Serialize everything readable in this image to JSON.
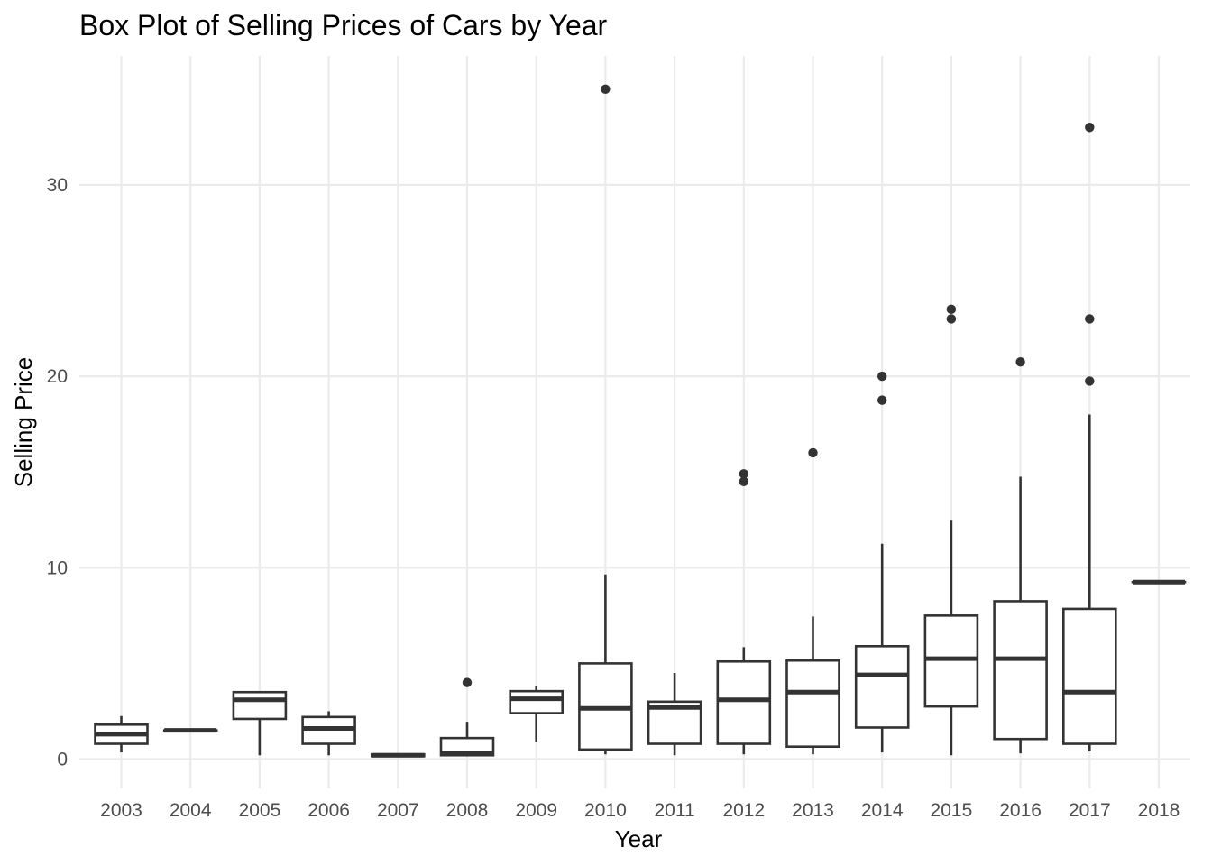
{
  "chart_data": {
    "type": "boxplot",
    "title": "Box Plot of Selling Prices of Cars by Year",
    "xlabel": "Year",
    "ylabel": "Selling Price",
    "ylim": [
      -1.5,
      36.5
    ],
    "y_ticks": [
      0,
      10,
      20,
      30
    ],
    "y_tick_labels": [
      "0",
      "10",
      "20",
      "30"
    ],
    "grid": true,
    "legend": "none",
    "categories": [
      "2003",
      "2004",
      "2005",
      "2006",
      "2007",
      "2008",
      "2009",
      "2010",
      "2011",
      "2012",
      "2013",
      "2014",
      "2015",
      "2016",
      "2017",
      "2018"
    ],
    "boxes": [
      {
        "year": "2003",
        "min": 0.35,
        "q1": 0.8,
        "median": 1.3,
        "q3": 1.8,
        "max": 2.25,
        "outliers": []
      },
      {
        "year": "2004",
        "min": 1.5,
        "q1": 1.5,
        "median": 1.5,
        "q3": 1.5,
        "max": 1.5,
        "outliers": []
      },
      {
        "year": "2005",
        "min": 0.2,
        "q1": 2.1,
        "median": 3.1,
        "q3": 3.5,
        "max": 3.5,
        "outliers": []
      },
      {
        "year": "2006",
        "min": 0.2,
        "q1": 0.8,
        "median": 1.6,
        "q3": 2.2,
        "max": 2.5,
        "outliers": []
      },
      {
        "year": "2007",
        "min": 0.15,
        "q1": 0.15,
        "median": 0.2,
        "q3": 0.25,
        "max": 0.25,
        "outliers": []
      },
      {
        "year": "2008",
        "min": 0.15,
        "q1": 0.2,
        "median": 0.3,
        "q3": 1.1,
        "max": 1.95,
        "outliers": [
          4.0
        ]
      },
      {
        "year": "2009",
        "min": 0.9,
        "q1": 2.4,
        "median": 3.15,
        "q3": 3.55,
        "max": 3.8,
        "outliers": []
      },
      {
        "year": "2010",
        "min": 0.25,
        "q1": 0.5,
        "median": 2.65,
        "q3": 5.0,
        "max": 9.65,
        "outliers": [
          35.0
        ]
      },
      {
        "year": "2011",
        "min": 0.2,
        "q1": 0.8,
        "median": 2.7,
        "q3": 3.0,
        "max": 4.5,
        "outliers": []
      },
      {
        "year": "2012",
        "min": 0.25,
        "q1": 0.8,
        "median": 3.1,
        "q3": 5.1,
        "max": 5.85,
        "outliers": [
          14.5,
          14.9
        ]
      },
      {
        "year": "2013",
        "min": 0.25,
        "q1": 0.65,
        "median": 3.5,
        "q3": 5.15,
        "max": 7.45,
        "outliers": [
          16.0
        ]
      },
      {
        "year": "2014",
        "min": 0.35,
        "q1": 1.65,
        "median": 4.4,
        "q3": 5.9,
        "max": 11.25,
        "outliers": [
          18.75,
          20.0
        ]
      },
      {
        "year": "2015",
        "min": 0.2,
        "q1": 2.75,
        "median": 5.25,
        "q3": 7.5,
        "max": 12.5,
        "outliers": [
          23.0,
          23.5
        ]
      },
      {
        "year": "2016",
        "min": 0.3,
        "q1": 1.05,
        "median": 5.25,
        "q3": 8.25,
        "max": 14.75,
        "outliers": [
          20.75
        ]
      },
      {
        "year": "2017",
        "min": 0.4,
        "q1": 0.8,
        "median": 3.5,
        "q3": 7.85,
        "max": 18.0,
        "outliers": [
          19.75,
          23.0,
          33.0
        ]
      },
      {
        "year": "2018",
        "min": 9.25,
        "q1": 9.25,
        "median": 9.25,
        "q3": 9.25,
        "max": 9.25,
        "outliers": []
      }
    ]
  }
}
